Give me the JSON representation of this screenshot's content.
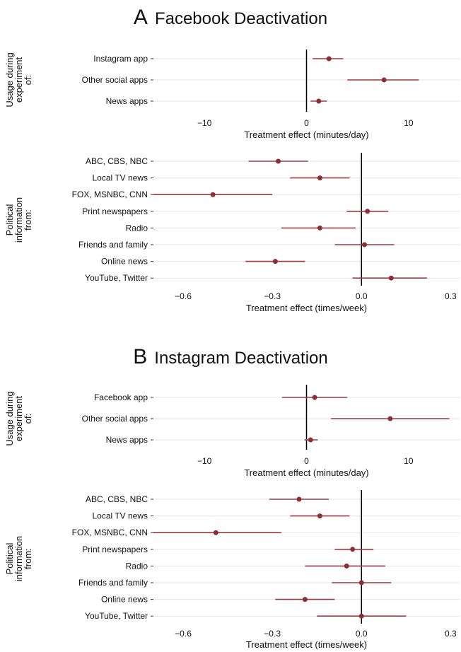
{
  "chart_data": [
    {
      "type": "forest",
      "panel_letter": "A",
      "title": "Facebook Deactivation",
      "groups": [
        {
          "label": "Usage during experiment of:",
          "xlabel": "Treatment effect (minutes/day)",
          "xlim": [
            -15,
            15
          ],
          "xticks": [
            -10,
            0,
            10
          ],
          "xticklabels": [
            "−10",
            "0",
            "10"
          ],
          "categories": [
            "Instagram app",
            "Other social apps",
            "News apps"
          ],
          "estimate": [
            2.2,
            7.6,
            1.2
          ],
          "ci_low": [
            0.6,
            4.0,
            0.4
          ],
          "ci_high": [
            3.6,
            11.0,
            2.0
          ]
        },
        {
          "label": "Political information from:",
          "xlabel": "Treatment effect (times/week)",
          "xlim": [
            -0.7,
            0.33
          ],
          "xticks": [
            -0.6,
            -0.3,
            0.0,
            0.3
          ],
          "xticklabels": [
            "−0.6",
            "−0.3",
            "0.0",
            "0.3"
          ],
          "categories": [
            "ABC, CBS, NBC",
            "Local TV news",
            "FOX, MSNBC, CNN",
            "Print newspapers",
            "Radio",
            "Friends and family",
            "Online news",
            "YouTube, Twitter"
          ],
          "estimate": [
            -0.28,
            -0.14,
            -0.5,
            0.02,
            -0.14,
            0.01,
            -0.29,
            0.1
          ],
          "ci_low": [
            -0.38,
            -0.24,
            -0.7,
            -0.05,
            -0.27,
            -0.09,
            -0.39,
            -0.03
          ],
          "ci_high": [
            -0.18,
            -0.04,
            -0.3,
            0.09,
            -0.02,
            0.11,
            -0.19,
            0.22
          ]
        }
      ]
    },
    {
      "type": "forest",
      "panel_letter": "B",
      "title": "Instagram Deactivation",
      "groups": [
        {
          "label": "Usage during experiment of:",
          "xlabel": "Treatment effect (minutes/day)",
          "xlim": [
            -15,
            15
          ],
          "xticks": [
            -10,
            0,
            10
          ],
          "xticklabels": [
            "−10",
            "0",
            "10"
          ],
          "categories": [
            "Facebook app",
            "Other social apps",
            "News apps"
          ],
          "estimate": [
            0.8,
            8.2,
            0.4
          ],
          "ci_low": [
            -2.4,
            2.4,
            -0.2
          ],
          "ci_high": [
            4.0,
            14.0,
            1.1
          ]
        },
        {
          "label": "Political information from:",
          "xlabel": "Treatment effect (times/week)",
          "xlim": [
            -0.7,
            0.33
          ],
          "xticks": [
            -0.6,
            -0.3,
            0.0,
            0.3
          ],
          "xticklabels": [
            "−0.6",
            "−0.3",
            "0.0",
            "0.3"
          ],
          "categories": [
            "ABC, CBS, NBC",
            "Local TV news",
            "FOX, MSNBC, CNN",
            "Print newspapers",
            "Radio",
            "Friends and family",
            "Online news",
            "YouTube, Twitter"
          ],
          "estimate": [
            -0.21,
            -0.14,
            -0.49,
            -0.03,
            -0.05,
            0.0,
            -0.19,
            0.0
          ],
          "ci_low": [
            -0.31,
            -0.24,
            -0.7,
            -0.09,
            -0.19,
            -0.1,
            -0.29,
            -0.15
          ],
          "ci_high": [
            -0.11,
            -0.04,
            -0.27,
            0.04,
            0.08,
            0.1,
            -0.09,
            0.15
          ]
        }
      ]
    }
  ],
  "colors": {
    "point": "#8b2f36",
    "ci_line": "#9b3a40",
    "gridline": "#e6e6e6",
    "zero_line": "#000000",
    "text": "#111111"
  }
}
